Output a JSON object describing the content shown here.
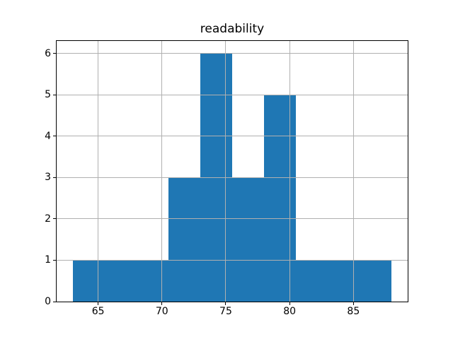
{
  "figure": {
    "background": "#ffffff"
  },
  "chart_data": {
    "type": "bar",
    "subtype": "histogram",
    "title": "readability",
    "xlabel": "",
    "ylabel": "",
    "bin_edges": [
      63,
      65.5,
      68,
      70.5,
      73,
      75.5,
      78,
      80.5,
      83,
      85.5,
      88
    ],
    "counts": [
      1,
      1,
      1,
      3,
      6,
      3,
      5,
      1,
      1,
      1
    ],
    "xticks": [
      65,
      70,
      75,
      80,
      85
    ],
    "yticks": [
      0,
      1,
      2,
      3,
      4,
      5,
      6
    ],
    "xlim": [
      61.75,
      89.25
    ],
    "ylim": [
      0,
      6.3
    ],
    "grid": true,
    "grid_above_bars": true,
    "legend": null,
    "colors": {
      "bar": "#1f77b4",
      "grid": "#b0b0b0",
      "spine": "#000000",
      "text": "#000000",
      "background": "#ffffff"
    }
  }
}
